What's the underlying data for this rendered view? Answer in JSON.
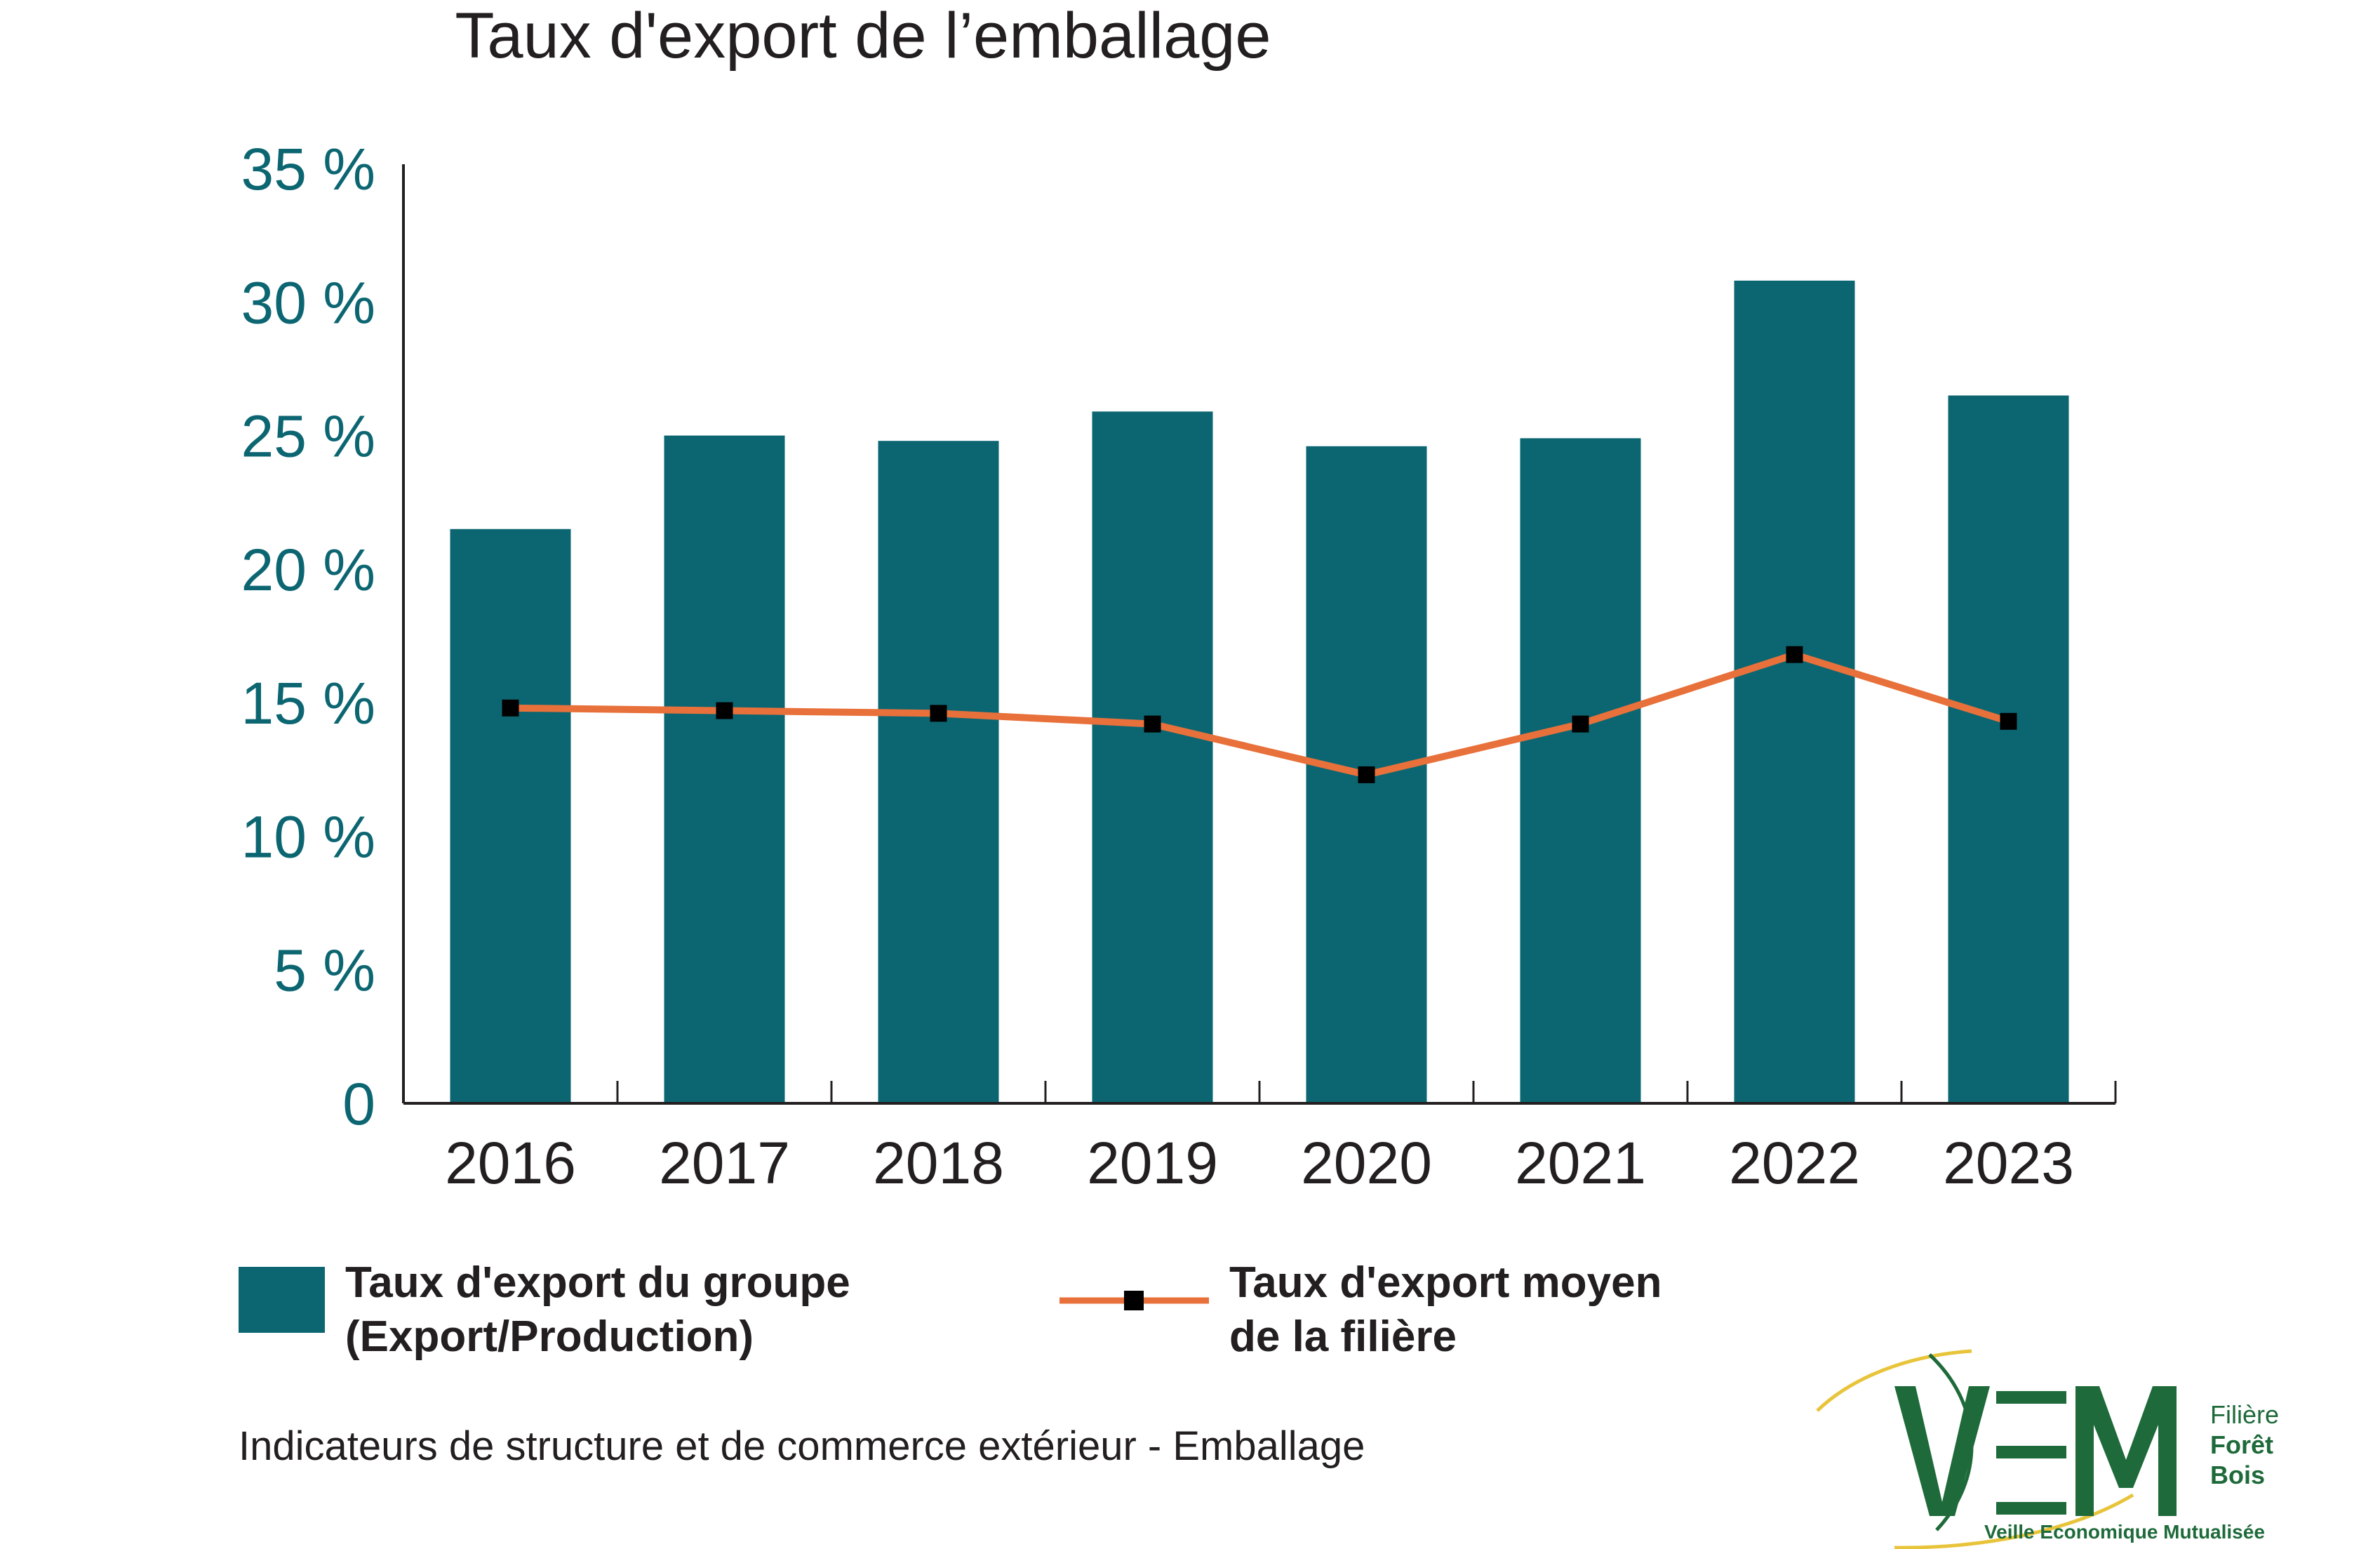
{
  "colors": {
    "bar": "#0c6672",
    "line": "#e8703a",
    "marker": "#000000",
    "axis": "#231f20",
    "tick_label": "#0c6672",
    "logo_green": "#1e6a3a",
    "logo_yellow": "#e8c43a"
  },
  "chart_data": {
    "type": "bar",
    "title": "Taux d'export de l’emballage",
    "categories": [
      "2016",
      "2017",
      "2018",
      "2019",
      "2020",
      "2021",
      "2022",
      "2023"
    ],
    "series": [
      {
        "name": "Taux d'export du groupe (Export/Production)",
        "kind": "bar",
        "values": [
          21.5,
          25.0,
          24.8,
          25.9,
          24.6,
          24.9,
          30.8,
          26.5
        ]
      },
      {
        "name": "Taux d'export moyen de la filière",
        "kind": "line",
        "values": [
          14.8,
          14.7,
          14.6,
          14.2,
          12.3,
          14.2,
          16.8,
          14.3
        ]
      }
    ],
    "ylim": [
      0,
      35
    ],
    "yticks": [
      0,
      5,
      10,
      15,
      20,
      25,
      30,
      35
    ],
    "ytick_labels": [
      "0",
      "5 %",
      "10 %",
      "15 %",
      "20 %",
      "25 %",
      "30 %",
      "35 %"
    ],
    "xlabel": "",
    "ylabel": "",
    "legend": [
      {
        "kind": "bar",
        "lines": [
          "Taux d'export du groupe",
          "(Export/Production)"
        ]
      },
      {
        "kind": "line",
        "lines": [
          "Taux d'export moyen",
          "de la filière"
        ]
      }
    ],
    "legend_position": "bottom"
  },
  "source": "Indicateurs de structure et de commerce extérieur - Emballage",
  "logo": {
    "name": "VEM",
    "label_line1": "Filière",
    "label_line2": "Forêt",
    "label_line3": "Bois",
    "tagline": "Veille Economique Mutualisée"
  }
}
